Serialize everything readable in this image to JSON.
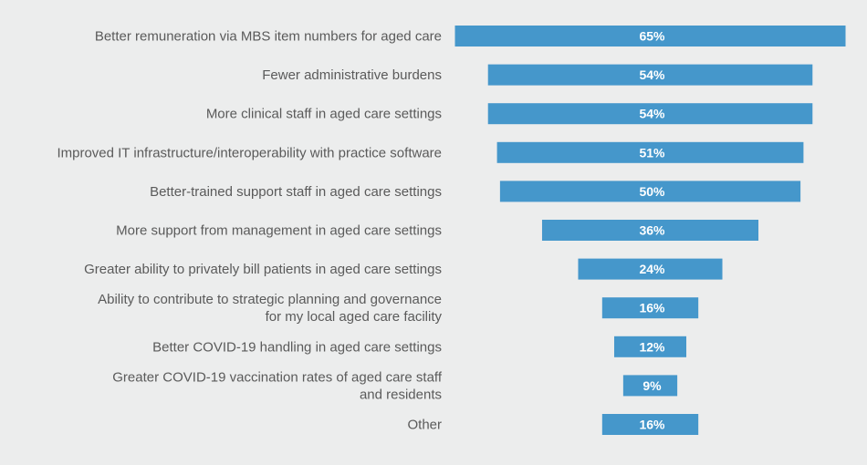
{
  "chart_data": {
    "type": "bar",
    "orientation": "horizontal",
    "alignment": "centered",
    "title": "",
    "xlabel": "",
    "ylabel": "",
    "value_suffix": "%",
    "xlim": [
      0,
      65
    ],
    "grid": false,
    "legend": null,
    "bar_color": "#4597cb",
    "categories": [
      [
        "Better remuneration via MBS item numbers for aged care"
      ],
      [
        "Fewer administrative burdens"
      ],
      [
        "More clinical staff in aged care settings"
      ],
      [
        "Improved IT infrastructure/interoperability with practice software"
      ],
      [
        "Better-trained support staff in aged care settings"
      ],
      [
        "More support from management in aged care settings"
      ],
      [
        "Greater ability to privately bill patients in aged care settings"
      ],
      [
        "Ability to contribute to strategic planning and governance",
        "for my local aged care facility"
      ],
      [
        "Better COVID-19 handling in aged care settings"
      ],
      [
        "Greater COVID-19 vaccination rates of aged care staff",
        "and residents"
      ],
      [
        "Other"
      ]
    ],
    "values": [
      65,
      54,
      54,
      51,
      50,
      36,
      24,
      16,
      12,
      9,
      16
    ],
    "data_labels": [
      "65%",
      "54%",
      "54%",
      "51%",
      "50%",
      "36%",
      "24%",
      "16%",
      "12%",
      "9%",
      "16%"
    ]
  }
}
